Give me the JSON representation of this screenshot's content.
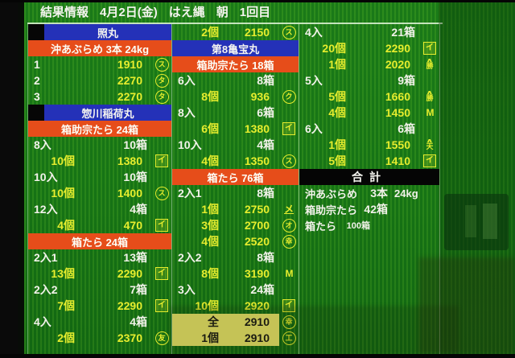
{
  "header": {
    "title": "結果情報",
    "date": "4月2日(金)",
    "method": "はえ縄",
    "session": "朝",
    "round": "1回目"
  },
  "colors": {
    "screen_green": "#177a16",
    "vessel_blue": "#2431b8",
    "species_orange": "#e64d1a",
    "price_yellow": "#e6ed2e",
    "highlight_yellow": "#ece868",
    "text_white": "#f2f2ea",
    "total_band_black": "#050505"
  },
  "columns": [
    {
      "rows": [
        {
          "type": "vessel",
          "label": "照丸",
          "notch": true
        },
        {
          "type": "species",
          "label": "沖あぶらめ 3本 24kg"
        },
        {
          "type": "sale",
          "qty": "1",
          "price": "1910",
          "plainLabel": true,
          "mark": {
            "char": "ス",
            "style": "circled"
          }
        },
        {
          "type": "sale",
          "qty": "2",
          "price": "2270",
          "plainLabel": true,
          "mark": {
            "char": "タ",
            "style": "circled"
          }
        },
        {
          "type": "sale",
          "qty": "3",
          "price": "2270",
          "plainLabel": true,
          "mark": {
            "char": "タ",
            "style": "circled"
          }
        },
        {
          "type": "vessel",
          "label": "惣川稲荷丸",
          "notch": true
        },
        {
          "type": "species",
          "label": "箱助宗たら 24箱"
        },
        {
          "type": "group",
          "label": "8入",
          "value": "10箱"
        },
        {
          "type": "sale",
          "qty": "10個",
          "price": "1380",
          "mark": {
            "char": "イ",
            "style": "boxed"
          }
        },
        {
          "type": "group",
          "label": "10入",
          "value": "10箱"
        },
        {
          "type": "sale",
          "qty": "10個",
          "price": "1400",
          "mark": {
            "char": "ス",
            "style": "circled"
          }
        },
        {
          "type": "group",
          "label": "12入",
          "value": "4箱"
        },
        {
          "type": "sale",
          "qty": "4個",
          "price": "470",
          "mark": {
            "char": "イ",
            "style": "boxed"
          }
        },
        {
          "type": "species",
          "label": "箱たら 24箱"
        },
        {
          "type": "group",
          "label": "2入1",
          "value": "13箱"
        },
        {
          "type": "sale",
          "qty": "13個",
          "price": "2290",
          "mark": {
            "char": "イ",
            "style": "boxed"
          }
        },
        {
          "type": "group",
          "label": "2入2",
          "value": "7箱"
        },
        {
          "type": "sale",
          "qty": "7個",
          "price": "2290",
          "mark": {
            "char": "イ",
            "style": "boxed"
          }
        },
        {
          "type": "group",
          "label": "4入",
          "value": "4箱"
        },
        {
          "type": "sale",
          "qty": "2個",
          "price": "2370",
          "mark": {
            "char": "友",
            "style": "circled"
          }
        }
      ]
    },
    {
      "rows": [
        {
          "type": "sale",
          "qty": "2個",
          "price": "2150",
          "mark": {
            "char": "ス",
            "style": "circled"
          }
        },
        {
          "type": "vessel",
          "label": "第8亀宝丸",
          "notch": false
        },
        {
          "type": "species",
          "label": "箱助宗たら 18箱"
        },
        {
          "type": "group",
          "label": "6入",
          "value": "8箱"
        },
        {
          "type": "sale",
          "qty": "8個",
          "price": "936",
          "mark": {
            "char": "ク",
            "style": "circled"
          }
        },
        {
          "type": "group",
          "label": "8入",
          "value": "6箱"
        },
        {
          "type": "sale",
          "qty": "6個",
          "price": "1380",
          "mark": {
            "char": "イ",
            "style": "boxed"
          }
        },
        {
          "type": "group",
          "label": "10入",
          "value": "4箱"
        },
        {
          "type": "sale",
          "qty": "4個",
          "price": "1350",
          "mark": {
            "char": "ス",
            "style": "circled"
          }
        },
        {
          "type": "species",
          "label": "箱たら 76箱"
        },
        {
          "type": "group",
          "label": "2入1",
          "value": "8箱"
        },
        {
          "type": "sale",
          "qty": "1個",
          "price": "2750",
          "mark": {
            "char": "メ",
            "style": "underlined"
          }
        },
        {
          "type": "sale",
          "qty": "3個",
          "price": "2700",
          "mark": {
            "char": "オ",
            "style": "circled"
          }
        },
        {
          "type": "sale",
          "qty": "4個",
          "price": "2520",
          "mark": {
            "char": "幸",
            "style": "circled"
          }
        },
        {
          "type": "group",
          "label": "2入2",
          "value": "8箱"
        },
        {
          "type": "sale",
          "qty": "8個",
          "price": "3190",
          "mark": {
            "char": "M",
            "style": "plain"
          }
        },
        {
          "type": "group",
          "label": "3入",
          "value": "24箱"
        },
        {
          "type": "sale",
          "qty": "10個",
          "price": "2920",
          "mark": {
            "char": "イ",
            "style": "boxed"
          }
        },
        {
          "type": "sale",
          "qty": "全",
          "price": "2910",
          "highlight": true,
          "mark": {
            "char": "幸",
            "style": "circled"
          }
        },
        {
          "type": "sale",
          "qty": "1個",
          "price": "2910",
          "highlight": true,
          "mark": {
            "char": "工",
            "style": "circled"
          }
        }
      ]
    },
    {
      "rows": [
        {
          "type": "group",
          "label": "4入",
          "value": "21箱"
        },
        {
          "type": "sale",
          "qty": "20個",
          "price": "2290",
          "mark": {
            "char": "イ",
            "style": "boxed"
          }
        },
        {
          "type": "sale",
          "qty": "1個",
          "price": "2020",
          "mark": {
            "char": "勝",
            "style": "yama"
          }
        },
        {
          "type": "group",
          "label": "5入",
          "value": "9箱"
        },
        {
          "type": "sale",
          "qty": "5個",
          "price": "1660",
          "mark": {
            "char": "勝",
            "style": "yama"
          }
        },
        {
          "type": "sale",
          "qty": "4個",
          "price": "1450",
          "mark": {
            "char": "M",
            "style": "plain"
          }
        },
        {
          "type": "group",
          "label": "6入",
          "value": "6箱"
        },
        {
          "type": "sale",
          "qty": "1個",
          "price": "1550",
          "mark": {
            "char": "天",
            "style": "yama"
          }
        },
        {
          "type": "sale",
          "qty": "5個",
          "price": "1410",
          "mark": {
            "char": "イ",
            "style": "boxed"
          }
        },
        {
          "type": "band",
          "label": "合計"
        },
        {
          "type": "summary",
          "label": "沖あぶらめ",
          "value": "3本",
          "extra": "24kg"
        },
        {
          "type": "summary",
          "label": "箱助宗たら",
          "value": "42箱",
          "extra": ""
        },
        {
          "type": "summary",
          "label": "箱たら",
          "value": "100箱",
          "extra": "",
          "small": true
        }
      ]
    }
  ]
}
